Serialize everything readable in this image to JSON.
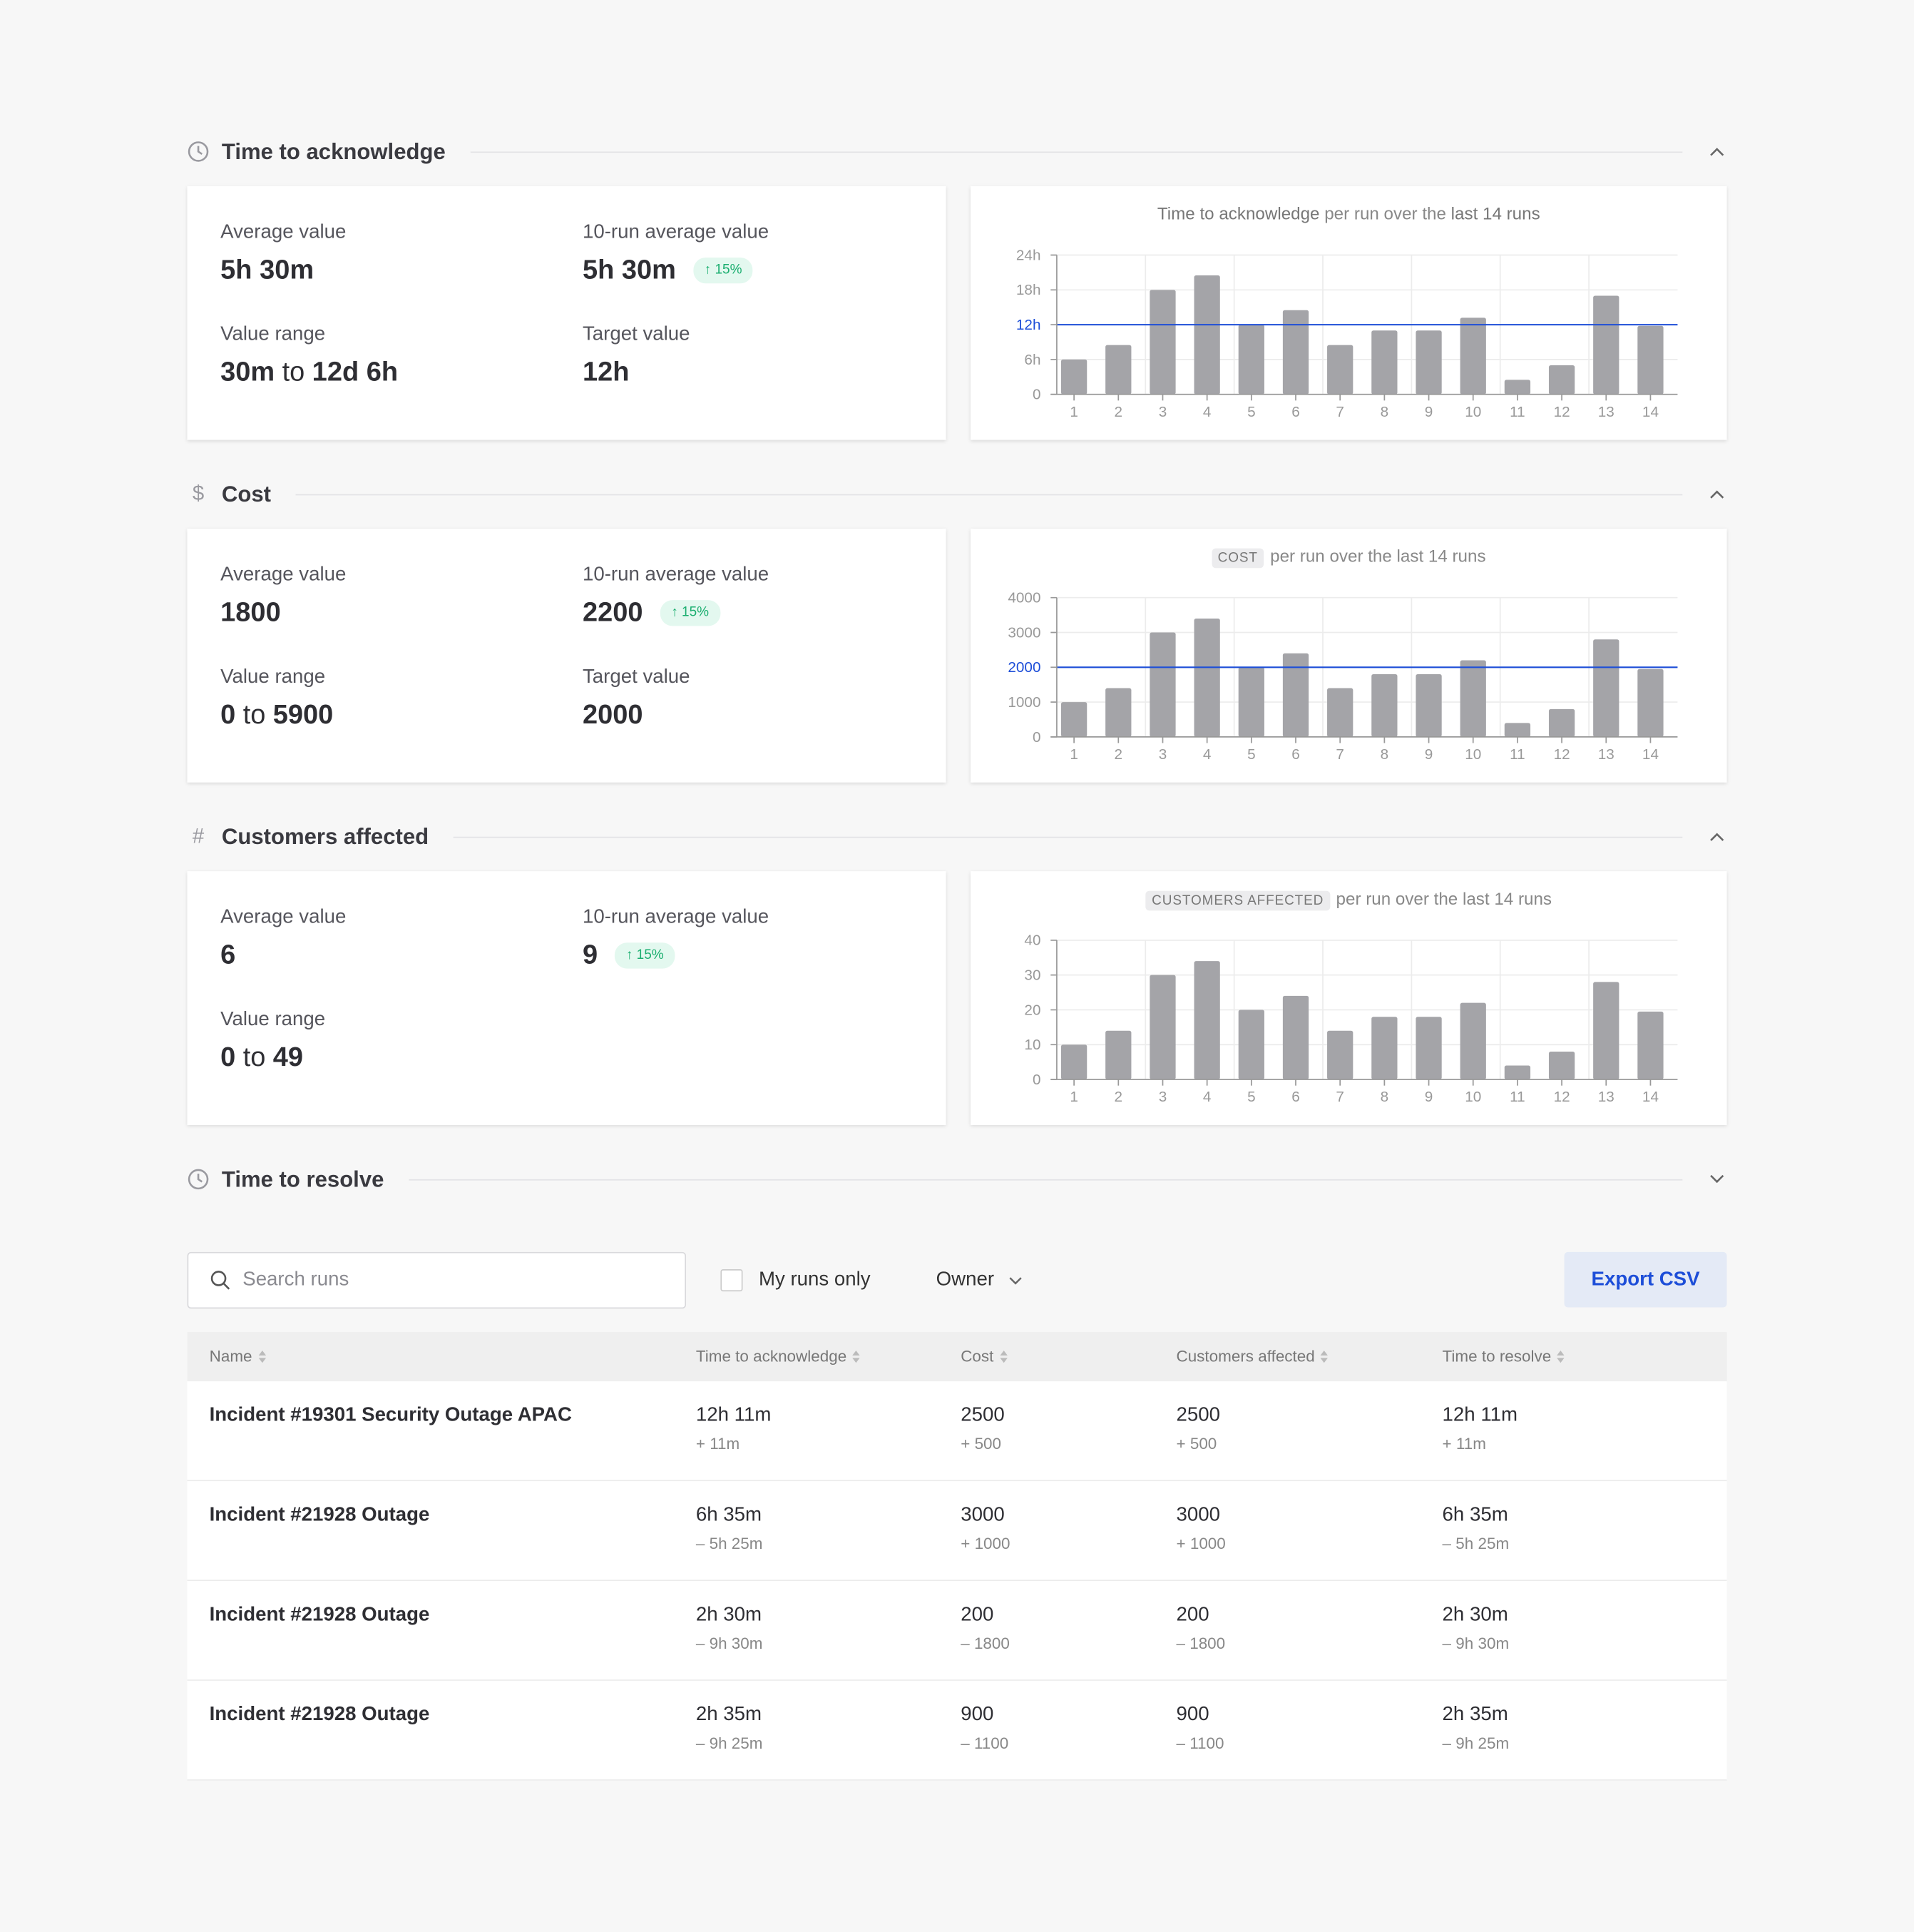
{
  "sections": [
    {
      "title": "Time to acknowledge",
      "icon": "clock-icon",
      "expanded": true,
      "stats": {
        "avg_label": "Average value",
        "avg": "5h 30m",
        "run_avg_label": "10-run average value",
        "run_avg": "5h 30m",
        "badge": "↑ 15%",
        "range_label": "Value range",
        "range_from": "30m",
        "range_to_word": "to",
        "range_to": "12d 6h",
        "target_label": "Target value",
        "target": "12h"
      }
    },
    {
      "title": "Cost",
      "icon": "dollar-icon",
      "expanded": true,
      "stats": {
        "avg_label": "Average value",
        "avg": "1800",
        "run_avg_label": "10-run average value",
        "run_avg": "2200",
        "badge": "↑ 15%",
        "range_label": "Value range",
        "range_from": "0",
        "range_to_word": "to",
        "range_to": "5900",
        "target_label": "Target value",
        "target": "2000"
      }
    },
    {
      "title": "Customers affected",
      "icon": "hash-icon",
      "expanded": true,
      "stats": {
        "avg_label": "Average value",
        "avg": "6",
        "run_avg_label": "10-run average value",
        "run_avg": "9",
        "badge": "↑ 15%",
        "range_label": "Value range",
        "range_from": "0",
        "range_to_word": "to",
        "range_to": "49"
      }
    },
    {
      "title": "Time to resolve",
      "icon": "clock-icon",
      "expanded": false
    }
  ],
  "chart_titles": [
    {
      "metric": "Time to acknowledge",
      "mid": " per run over the ",
      "end": "last 14 runs"
    },
    {
      "tag": "COST",
      "rest": "per run over the last 14 runs"
    },
    {
      "tag": "CUSTOMERS AFFECTED",
      "rest": "per run over the last 14 runs"
    }
  ],
  "chart_data": [
    {
      "type": "bar",
      "categories": [
        "1",
        "2",
        "3",
        "4",
        "5",
        "6",
        "7",
        "8",
        "9",
        "10",
        "11",
        "12",
        "13",
        "14"
      ],
      "values": [
        6,
        8.5,
        18,
        20.5,
        12,
        14.5,
        8.5,
        11,
        11,
        13.2,
        2.5,
        5,
        17,
        11.8
      ],
      "ylim": [
        0,
        24
      ],
      "yticks": [
        0,
        6,
        12,
        18,
        24
      ],
      "ytick_labels": [
        "0",
        "6h",
        "12h",
        "18h",
        "24h"
      ],
      "target": 12,
      "target_label": "12h",
      "grid": true,
      "bar_color": "#a4a4a8",
      "target_color": "#1d4ed8"
    },
    {
      "type": "bar",
      "categories": [
        "1",
        "2",
        "3",
        "4",
        "5",
        "6",
        "7",
        "8",
        "9",
        "10",
        "11",
        "12",
        "13",
        "14"
      ],
      "values": [
        1000,
        1400,
        3000,
        3400,
        2000,
        2400,
        1400,
        1800,
        1800,
        2200,
        400,
        800,
        2800,
        1950
      ],
      "ylim": [
        0,
        4000
      ],
      "yticks": [
        0,
        1000,
        2000,
        3000,
        4000
      ],
      "ytick_labels": [
        "0",
        "1000",
        "2000",
        "3000",
        "4000"
      ],
      "target": 2000,
      "target_label": "2000",
      "grid": true,
      "bar_color": "#a4a4a8",
      "target_color": "#1d4ed8"
    },
    {
      "type": "bar",
      "categories": [
        "1",
        "2",
        "3",
        "4",
        "5",
        "6",
        "7",
        "8",
        "9",
        "10",
        "11",
        "12",
        "13",
        "14"
      ],
      "values": [
        10,
        14,
        30,
        34,
        20,
        24,
        14,
        18,
        18,
        22,
        4,
        8,
        28,
        19.5
      ],
      "ylim": [
        0,
        40
      ],
      "yticks": [
        0,
        10,
        20,
        30,
        40
      ],
      "ytick_labels": [
        "0",
        "10",
        "20",
        "30",
        "40"
      ],
      "grid": true,
      "bar_color": "#a4a4a8"
    }
  ],
  "toolbar": {
    "search_placeholder": "Search runs",
    "my_runs_label": "My runs only",
    "owner_label": "Owner",
    "export_label": "Export CSV"
  },
  "table": {
    "columns": [
      "Name",
      "Time to acknowledge",
      "Cost",
      "Customers affected",
      "Time to resolve"
    ],
    "rows": [
      {
        "name": "Incident #19301 Security Outage APAC",
        "cells": [
          [
            "12h 11m",
            "+ 11m"
          ],
          [
            "2500",
            "+ 500"
          ],
          [
            "2500",
            "+ 500"
          ],
          [
            "12h 11m",
            "+ 11m"
          ]
        ]
      },
      {
        "name": "Incident #21928 Outage",
        "cells": [
          [
            "6h 35m",
            "– 5h 25m"
          ],
          [
            "3000",
            "+ 1000"
          ],
          [
            "3000",
            "+ 1000"
          ],
          [
            "6h 35m",
            "– 5h 25m"
          ]
        ]
      },
      {
        "name": "Incident #21928 Outage",
        "cells": [
          [
            "2h 30m",
            "– 9h 30m"
          ],
          [
            "200",
            "– 1800"
          ],
          [
            "200",
            "– 1800"
          ],
          [
            "2h 30m",
            "– 9h 30m"
          ]
        ]
      },
      {
        "name": "Incident #21928 Outage",
        "cells": [
          [
            "2h 35m",
            "– 9h 25m"
          ],
          [
            "900",
            "– 1100"
          ],
          [
            "900",
            "– 1100"
          ],
          [
            "2h 35m",
            "– 9h 25m"
          ]
        ]
      }
    ]
  }
}
